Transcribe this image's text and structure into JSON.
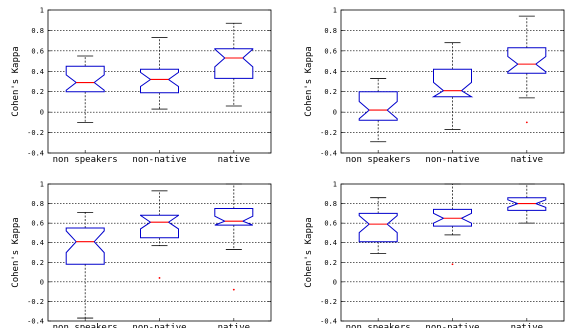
{
  "chart_data": [
    {
      "type": "boxplot",
      "ylabel": "Cohen's Kappa",
      "ylim": [
        -0.4,
        1
      ],
      "yticks": [
        "-0.4",
        "-0.2",
        "0",
        "0.2",
        "0.4",
        "0.6",
        "0.8",
        "1"
      ],
      "grid": true,
      "categories": [
        "non speakers",
        "non-native",
        "native"
      ],
      "boxes": [
        {
          "whisker_low": -0.1,
          "q1": 0.2,
          "median": 0.29,
          "q3": 0.45,
          "whisker_high": 0.55,
          "outliers": []
        },
        {
          "whisker_low": 0.03,
          "q1": 0.19,
          "median": 0.32,
          "q3": 0.42,
          "whisker_high": 0.73,
          "outliers": []
        },
        {
          "whisker_low": 0.06,
          "q1": 0.33,
          "median": 0.53,
          "q3": 0.62,
          "whisker_high": 0.87,
          "outliers": []
        }
      ]
    },
    {
      "type": "boxplot",
      "ylabel": "Cohen's Kappa",
      "ylim": [
        -0.4,
        1
      ],
      "yticks": [
        "-0.4",
        "-0.2",
        "0",
        "0.2",
        "0.4",
        "0.6",
        "0.8",
        "1"
      ],
      "grid": true,
      "categories": [
        "non speakers",
        "non-native",
        "native"
      ],
      "boxes": [
        {
          "whisker_low": -0.29,
          "q1": -0.08,
          "median": 0.02,
          "q3": 0.2,
          "whisker_high": 0.33,
          "outliers": []
        },
        {
          "whisker_low": -0.17,
          "q1": 0.15,
          "median": 0.21,
          "q3": 0.42,
          "whisker_high": 0.68,
          "outliers": []
        },
        {
          "whisker_low": 0.14,
          "q1": 0.38,
          "median": 0.47,
          "q3": 0.63,
          "whisker_high": 0.94,
          "outliers": [
            -0.1
          ]
        }
      ]
    },
    {
      "type": "boxplot",
      "ylabel": "Cohen's Kappa",
      "ylim": [
        -0.4,
        1
      ],
      "yticks": [
        "-0.4",
        "-0.2",
        "0",
        "0.2",
        "0.4",
        "0.6",
        "0.8",
        "1"
      ],
      "grid": true,
      "categories": [
        "non speakers",
        "non-native",
        "native"
      ],
      "boxes": [
        {
          "whisker_low": -0.37,
          "q1": 0.18,
          "median": 0.41,
          "q3": 0.55,
          "whisker_high": 0.71,
          "outliers": []
        },
        {
          "whisker_low": 0.37,
          "q1": 0.45,
          "median": 0.61,
          "q3": 0.68,
          "whisker_high": 0.93,
          "outliers": [
            0.04
          ]
        },
        {
          "whisker_low": 0.33,
          "q1": 0.58,
          "median": 0.62,
          "q3": 0.75,
          "whisker_high": 1.0,
          "outliers": [
            -0.08
          ]
        }
      ]
    },
    {
      "type": "boxplot",
      "ylabel": "Cohen's Kappa",
      "ylim": [
        -0.4,
        1
      ],
      "yticks": [
        "-0.4",
        "-0.2",
        "0",
        "0.2",
        "0.4",
        "0.6",
        "0.8",
        "1"
      ],
      "grid": true,
      "categories": [
        "non speakers",
        "non-native",
        "native"
      ],
      "boxes": [
        {
          "whisker_low": 0.29,
          "q1": 0.41,
          "median": 0.59,
          "q3": 0.7,
          "whisker_high": 0.86,
          "outliers": []
        },
        {
          "whisker_low": 0.48,
          "q1": 0.57,
          "median": 0.65,
          "q3": 0.74,
          "whisker_high": 1.0,
          "outliers": [
            0.18
          ]
        },
        {
          "whisker_low": 0.6,
          "q1": 0.73,
          "median": 0.8,
          "q3": 0.86,
          "whisker_high": 1.0,
          "outliers": []
        }
      ]
    }
  ],
  "colors": {
    "box": "#0000cc",
    "median": "#ff0000",
    "whisker": "#000000",
    "outlier": "#ff0000",
    "grid": "#000000"
  }
}
